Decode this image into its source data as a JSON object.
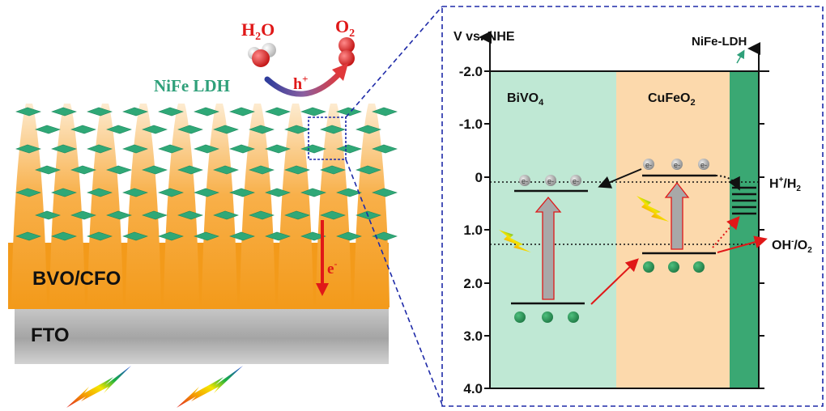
{
  "left_panel": {
    "reaction_reactant": "H",
    "reaction_reactant_sub": "2",
    "reaction_reactant_tail": "O",
    "reaction_product": "O",
    "reaction_product_sub": "2",
    "hole_label": "h",
    "hole_sup": "+",
    "cocatalyst_label": "NiFe LDH",
    "photoanode_label": "BVO/CFO",
    "electron_label": "e",
    "electron_sup": "-",
    "substrate_label": "FTO"
  },
  "right_panel": {
    "y_axis_title": "V vs. NHE",
    "y_ticks": [
      "-2.0",
      "-1.0",
      "0",
      "1.0",
      "2.0",
      "3.0",
      "4.0"
    ],
    "bivo4_label": "BiVO",
    "bivo4_sub": "4",
    "cufeo2_label": "CuFeO",
    "cufeo2_sub": "2",
    "nife_ldh_label": "NiFe-LDH",
    "h2_label": "H",
    "h2_sup": "+",
    "h2_tail": "/H",
    "h2_sub": "2",
    "oh_label": "OH",
    "oh_sup": "-",
    "oh_tail": "/O",
    "oh_sub": "2",
    "electron_symbol": "e-",
    "colors": {
      "bivo4_region": "#bfe8d4",
      "cufeo2_region": "#fcd9ac",
      "nife_region": "#3aa873",
      "frame_dashed": "#1e2aa8",
      "arrow_red": "#e01818"
    }
  }
}
